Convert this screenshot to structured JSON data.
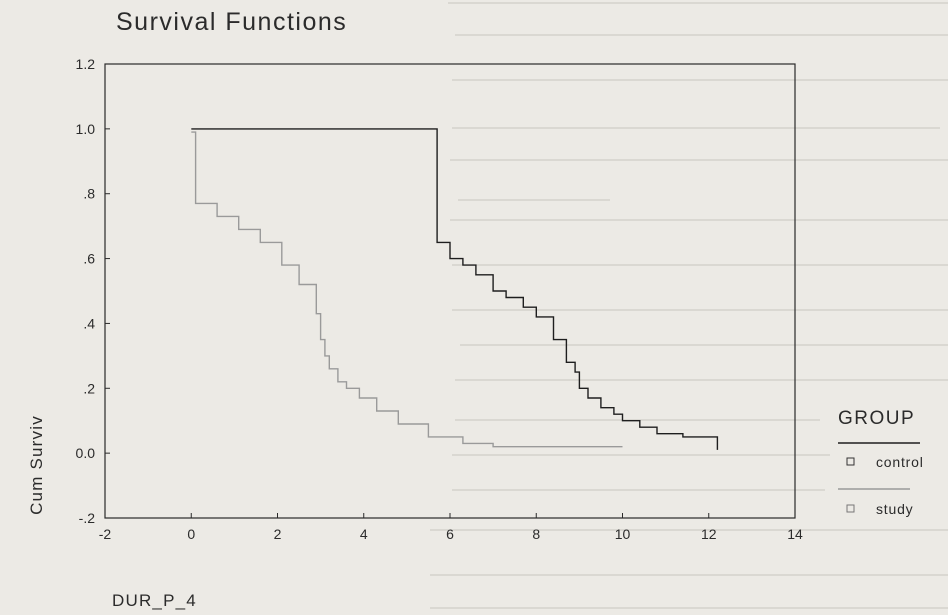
{
  "chart_data": {
    "type": "line",
    "title": "Survival Functions",
    "xlabel": "DUR_P_4",
    "ylabel": "Cum Surviv",
    "xlim": [
      -2,
      14
    ],
    "ylim": [
      -0.2,
      1.2
    ],
    "x_ticks": [
      "-2",
      "0",
      "2",
      "4",
      "6",
      "8",
      "10",
      "12",
      "14"
    ],
    "y_ticks": [
      "-.2",
      "0.0",
      ".2",
      ".4",
      ".6",
      ".8",
      "1.0",
      "1.2"
    ],
    "grid": false,
    "step": true,
    "legend": {
      "title": "GROUP",
      "placement": "right",
      "entries": [
        "control",
        "study"
      ]
    },
    "series": [
      {
        "name": "control",
        "color": "#1e1e1e",
        "x": [
          0,
          5.3,
          5.7,
          6.0,
          6.3,
          6.6,
          7.0,
          7.3,
          7.7,
          8.0,
          8.4,
          8.7,
          8.9,
          9.0,
          9.2,
          9.5,
          9.8,
          10.0,
          10.4,
          10.8,
          11.4,
          12.2
        ],
        "y": [
          1.0,
          1.0,
          0.65,
          0.6,
          0.58,
          0.55,
          0.5,
          0.48,
          0.45,
          0.42,
          0.35,
          0.28,
          0.25,
          0.2,
          0.17,
          0.14,
          0.12,
          0.1,
          0.08,
          0.06,
          0.05,
          0.01
        ]
      },
      {
        "name": "study",
        "color": "#9a9a9a",
        "x": [
          0,
          0.1,
          0.6,
          1.1,
          1.6,
          2.1,
          2.5,
          2.9,
          3.0,
          3.1,
          3.2,
          3.4,
          3.6,
          3.9,
          4.3,
          4.8,
          5.5,
          6.3,
          7.0,
          8.0,
          10.0
        ],
        "y": [
          0.99,
          0.77,
          0.73,
          0.69,
          0.65,
          0.58,
          0.52,
          0.43,
          0.35,
          0.3,
          0.26,
          0.22,
          0.2,
          0.17,
          0.13,
          0.09,
          0.05,
          0.03,
          0.02,
          0.02,
          0.02
        ]
      }
    ]
  }
}
